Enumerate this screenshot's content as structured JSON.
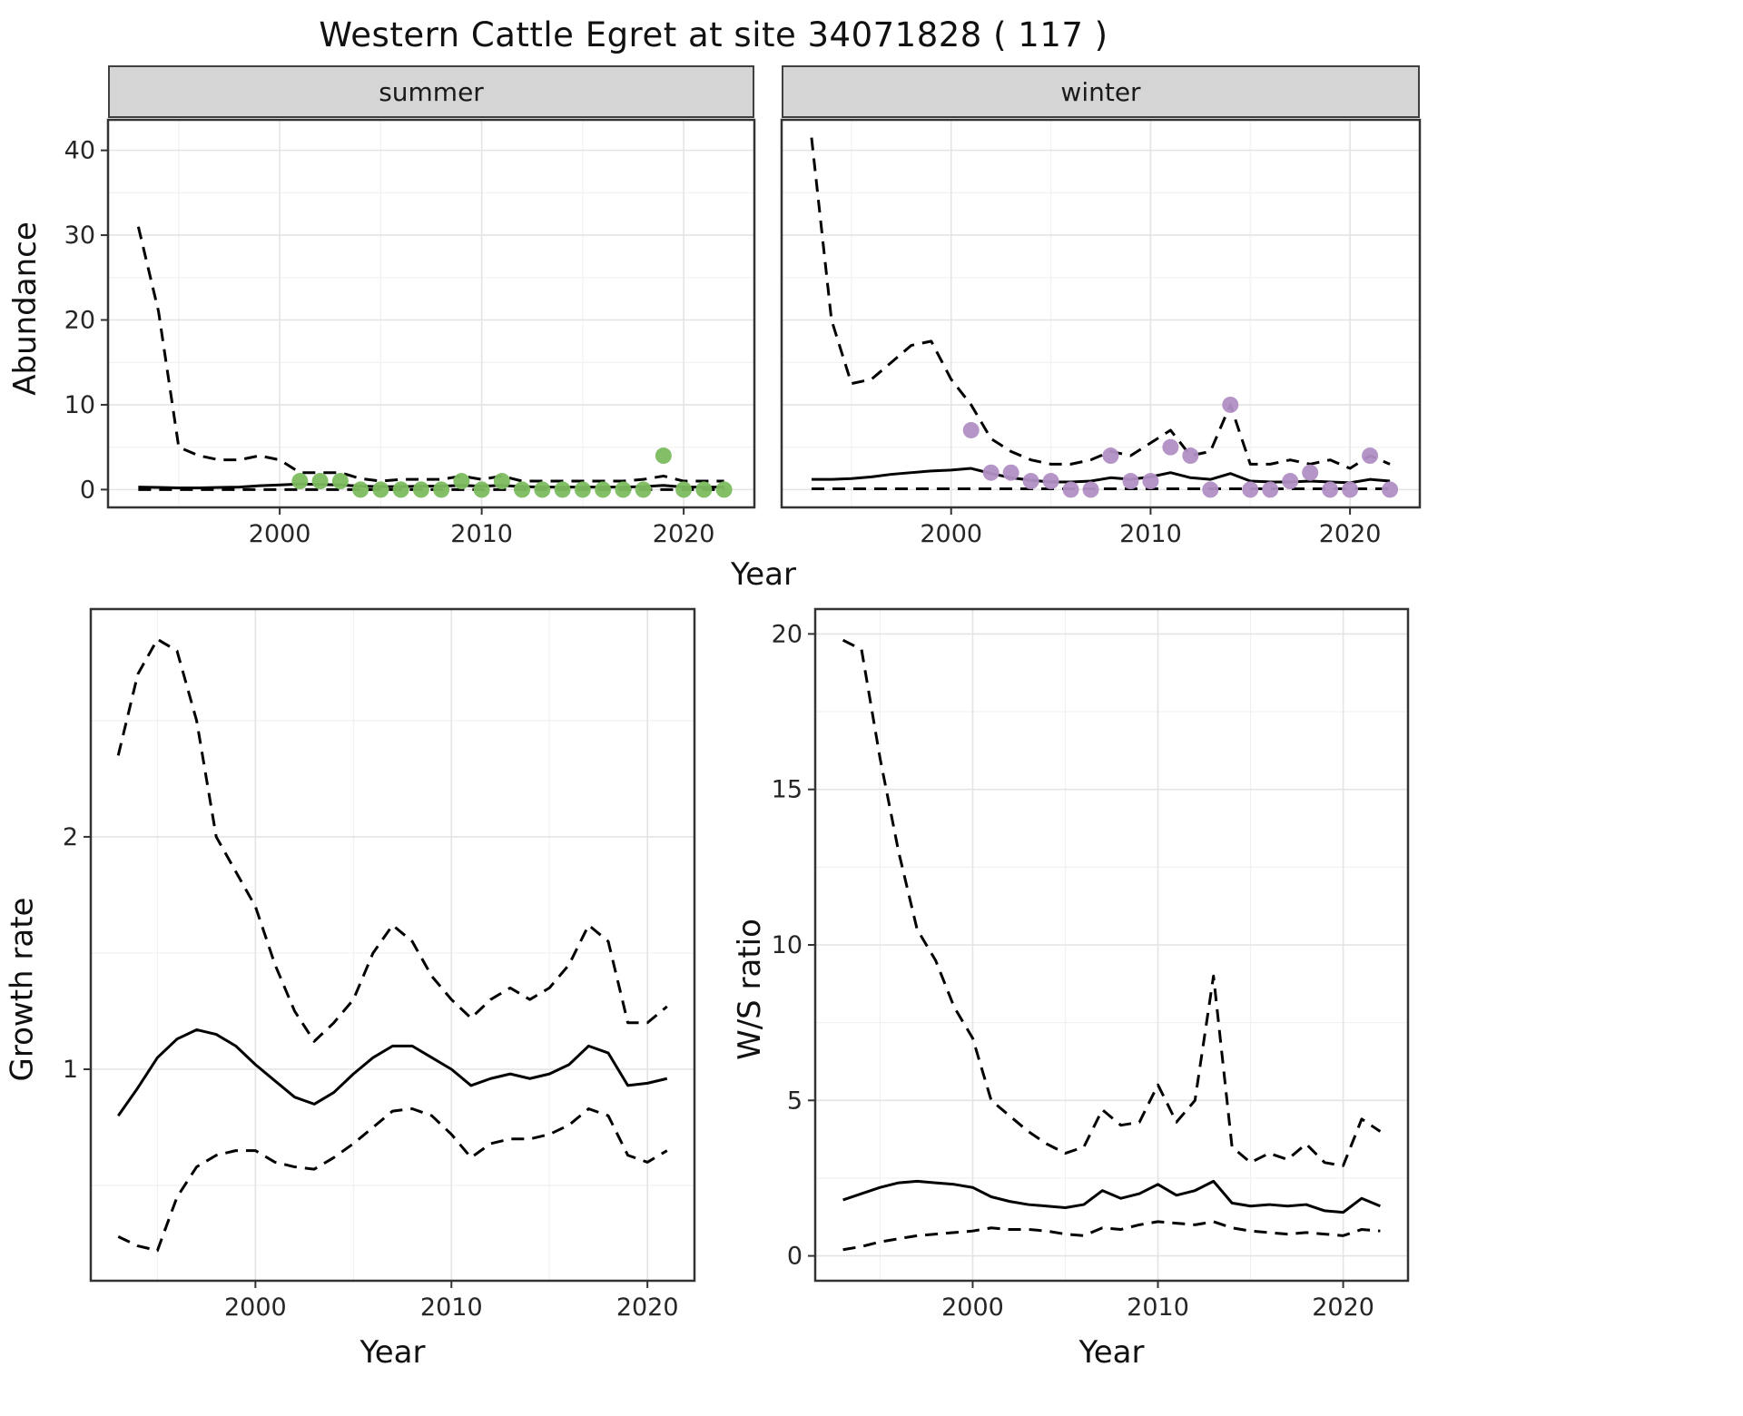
{
  "title": "Western Cattle Egret at site 34071828 ( 117 )",
  "colors": {
    "line": "#000000",
    "summer_points": "#7cbc5f",
    "winter_points": "#b18fc4",
    "strip_bg": "#d5d5d5",
    "strip_border": "#404040",
    "panel_border": "#333333",
    "grid_major": "#e4e4e4",
    "grid_minor": "#f1f1f1",
    "tick_text": "#262626"
  },
  "chart_data": [
    {
      "id": "abundance-summer",
      "type": "line",
      "facet": "summer",
      "xlabel": "Year",
      "ylabel": "Abundance",
      "xlim": [
        1991.5,
        2023.5
      ],
      "ylim": [
        -2.1,
        43.6
      ],
      "xticks": [
        2000,
        2010,
        2020
      ],
      "yticks": [
        0,
        10,
        20,
        30,
        40
      ],
      "show_y_tick_labels": true,
      "legend": "none",
      "x": [
        1993,
        1994,
        1995,
        1996,
        1997,
        1998,
        1999,
        2000,
        2001,
        2002,
        2003,
        2004,
        2005,
        2006,
        2007,
        2008,
        2009,
        2010,
        2011,
        2012,
        2013,
        2014,
        2015,
        2016,
        2017,
        2018,
        2019,
        2020,
        2021,
        2022
      ],
      "series": [
        {
          "name": "upper-ci",
          "style": "dashed",
          "values": [
            31,
            21,
            5,
            4,
            3.5,
            3.5,
            4,
            3.5,
            2,
            2,
            2,
            1.3,
            1,
            1.2,
            1.2,
            1.2,
            1.6,
            1.2,
            1.6,
            1,
            1,
            1,
            1,
            1,
            1,
            1.2,
            1.6,
            1,
            1,
            1
          ]
        },
        {
          "name": "mean",
          "style": "solid",
          "values": [
            0.3,
            0.25,
            0.2,
            0.2,
            0.25,
            0.3,
            0.45,
            0.55,
            0.65,
            0.6,
            0.55,
            0.4,
            0.35,
            0.35,
            0.4,
            0.4,
            0.5,
            0.4,
            0.5,
            0.35,
            0.3,
            0.3,
            0.3,
            0.3,
            0.3,
            0.35,
            0.5,
            0.3,
            0.3,
            0.3
          ]
        },
        {
          "name": "lower-ci",
          "style": "dashed",
          "values": [
            0,
            0,
            0,
            0,
            0,
            0,
            0,
            0,
            0,
            0,
            0,
            0,
            0,
            0,
            0,
            0,
            0,
            0,
            0,
            0,
            0,
            0,
            0,
            0,
            0,
            0,
            0,
            0,
            0,
            0
          ]
        }
      ],
      "points": {
        "name": "observed-counts-summer",
        "color_key": "summer_points",
        "x": [
          2001,
          2002,
          2003,
          2004,
          2005,
          2006,
          2007,
          2008,
          2009,
          2010,
          2011,
          2012,
          2013,
          2014,
          2015,
          2016,
          2017,
          2018,
          2019,
          2020,
          2021,
          2022
        ],
        "y": [
          1,
          1,
          1,
          0,
          0,
          0,
          0,
          0,
          1,
          0,
          1,
          0,
          0,
          0,
          0,
          0,
          0,
          0,
          4,
          0,
          0,
          0
        ]
      }
    },
    {
      "id": "abundance-winter",
      "type": "line",
      "facet": "winter",
      "xlabel": "Year",
      "ylabel": "Abundance",
      "xlim": [
        1991.5,
        2023.5
      ],
      "ylim": [
        -2.1,
        43.6
      ],
      "xticks": [
        2000,
        2010,
        2020
      ],
      "yticks": [
        0,
        10,
        20,
        30,
        40
      ],
      "show_y_tick_labels": false,
      "legend": "none",
      "x": [
        1993,
        1994,
        1995,
        1996,
        1997,
        1998,
        1999,
        2000,
        2001,
        2002,
        2003,
        2004,
        2005,
        2006,
        2007,
        2008,
        2009,
        2010,
        2011,
        2012,
        2013,
        2014,
        2015,
        2016,
        2017,
        2018,
        2019,
        2020,
        2021,
        2022
      ],
      "series": [
        {
          "name": "upper-ci",
          "style": "dashed",
          "values": [
            41.5,
            20,
            12.5,
            13,
            15,
            17,
            17.5,
            13,
            10,
            6,
            4.5,
            3.5,
            3,
            3,
            3.5,
            4.5,
            4,
            5.5,
            7,
            4,
            4.5,
            10,
            3,
            3,
            3.5,
            3,
            3.5,
            2.5,
            4,
            3
          ]
        },
        {
          "name": "mean",
          "style": "solid",
          "values": [
            1.2,
            1.2,
            1.3,
            1.5,
            1.8,
            2.0,
            2.2,
            2.3,
            2.5,
            1.9,
            1.4,
            1.1,
            0.9,
            0.9,
            1.0,
            1.4,
            1.2,
            1.5,
            2.0,
            1.4,
            1.2,
            1.9,
            1.0,
            0.9,
            0.9,
            1.0,
            0.9,
            0.8,
            1.2,
            1.0
          ]
        },
        {
          "name": "lower-ci",
          "style": "dashed",
          "values": [
            0.1,
            0.1,
            0.1,
            0.1,
            0.1,
            0.1,
            0.1,
            0.1,
            0.1,
            0.1,
            0.1,
            0.1,
            0.1,
            0.1,
            0.1,
            0.1,
            0.1,
            0.1,
            0.1,
            0.1,
            0.1,
            0.1,
            0.1,
            0.1,
            0.1,
            0.1,
            0.1,
            0.1,
            0.1,
            0.1
          ]
        }
      ],
      "points": {
        "name": "observed-counts-winter",
        "color_key": "winter_points",
        "x": [
          2001,
          2002,
          2003,
          2004,
          2005,
          2006,
          2007,
          2008,
          2009,
          2010,
          2011,
          2012,
          2013,
          2014,
          2015,
          2016,
          2017,
          2018,
          2019,
          2020,
          2021,
          2022
        ],
        "y": [
          7,
          2,
          2,
          1,
          1,
          0,
          0,
          4,
          1,
          1,
          5,
          4,
          0,
          10,
          0,
          0,
          1,
          2,
          0,
          0,
          4,
          0
        ]
      }
    },
    {
      "id": "growth-rate",
      "type": "line",
      "facet": "",
      "xlabel": "Year",
      "ylabel": "Growth rate",
      "xlim": [
        1991.6,
        2022.4
      ],
      "ylim": [
        0.09,
        2.98
      ],
      "xticks": [
        2000,
        2010,
        2020
      ],
      "yticks": [
        1,
        2
      ],
      "show_y_tick_labels": true,
      "legend": "none",
      "x": [
        1993,
        1994,
        1995,
        1996,
        1997,
        1998,
        1999,
        2000,
        2001,
        2002,
        2003,
        2004,
        2005,
        2006,
        2007,
        2008,
        2009,
        2010,
        2011,
        2012,
        2013,
        2014,
        2015,
        2016,
        2017,
        2018,
        2019,
        2020,
        2021
      ],
      "series": [
        {
          "name": "upper-ci",
          "style": "dashed",
          "values": [
            2.35,
            2.7,
            2.85,
            2.8,
            2.5,
            2.0,
            1.85,
            1.7,
            1.45,
            1.25,
            1.12,
            1.2,
            1.3,
            1.5,
            1.62,
            1.55,
            1.4,
            1.3,
            1.22,
            1.3,
            1.35,
            1.3,
            1.35,
            1.45,
            1.62,
            1.55,
            1.2,
            1.2,
            1.27
          ]
        },
        {
          "name": "mean",
          "style": "solid",
          "values": [
            0.8,
            0.92,
            1.05,
            1.13,
            1.17,
            1.15,
            1.1,
            1.02,
            0.95,
            0.88,
            0.85,
            0.9,
            0.98,
            1.05,
            1.1,
            1.1,
            1.05,
            1.0,
            0.93,
            0.96,
            0.98,
            0.96,
            0.98,
            1.02,
            1.1,
            1.07,
            0.93,
            0.94,
            0.96
          ]
        },
        {
          "name": "lower-ci",
          "style": "dashed",
          "values": [
            0.28,
            0.24,
            0.22,
            0.45,
            0.58,
            0.63,
            0.65,
            0.65,
            0.6,
            0.58,
            0.57,
            0.62,
            0.68,
            0.75,
            0.82,
            0.83,
            0.8,
            0.72,
            0.62,
            0.68,
            0.7,
            0.7,
            0.72,
            0.76,
            0.83,
            0.8,
            0.63,
            0.6,
            0.65
          ]
        }
      ]
    },
    {
      "id": "ws-ratio",
      "type": "line",
      "facet": "",
      "xlabel": "Year",
      "ylabel": "W/S ratio",
      "xlim": [
        1991.5,
        2023.5
      ],
      "ylim": [
        -0.8,
        20.8
      ],
      "xticks": [
        2000,
        2010,
        2020
      ],
      "yticks": [
        0,
        5,
        10,
        15,
        20
      ],
      "show_y_tick_labels": true,
      "legend": "none",
      "x": [
        1993,
        1994,
        1995,
        1996,
        1997,
        1998,
        1999,
        2000,
        2001,
        2002,
        2003,
        2004,
        2005,
        2006,
        2007,
        2008,
        2009,
        2010,
        2011,
        2012,
        2013,
        2014,
        2015,
        2016,
        2017,
        2018,
        2019,
        2020,
        2021,
        2022
      ],
      "series": [
        {
          "name": "upper-ci",
          "style": "dashed",
          "values": [
            19.8,
            19.5,
            16,
            13,
            10.5,
            9.5,
            8,
            7,
            5,
            4.5,
            4,
            3.6,
            3.3,
            3.5,
            4.7,
            4.2,
            4.3,
            5.5,
            4.3,
            5,
            9,
            3.5,
            3,
            3.3,
            3.1,
            3.6,
            3,
            2.9,
            4.4,
            4
          ]
        },
        {
          "name": "mean",
          "style": "solid",
          "values": [
            1.8,
            2.0,
            2.2,
            2.35,
            2.4,
            2.35,
            2.3,
            2.2,
            1.9,
            1.75,
            1.65,
            1.6,
            1.55,
            1.65,
            2.1,
            1.85,
            2.0,
            2.3,
            1.95,
            2.1,
            2.4,
            1.7,
            1.6,
            1.65,
            1.6,
            1.65,
            1.45,
            1.4,
            1.85,
            1.6
          ]
        },
        {
          "name": "lower-ci",
          "style": "dashed",
          "values": [
            0.2,
            0.3,
            0.45,
            0.55,
            0.65,
            0.7,
            0.75,
            0.8,
            0.9,
            0.85,
            0.85,
            0.8,
            0.7,
            0.65,
            0.9,
            0.85,
            1.0,
            1.1,
            1.05,
            1.0,
            1.1,
            0.9,
            0.8,
            0.75,
            0.7,
            0.75,
            0.7,
            0.65,
            0.85,
            0.8
          ]
        }
      ]
    }
  ]
}
